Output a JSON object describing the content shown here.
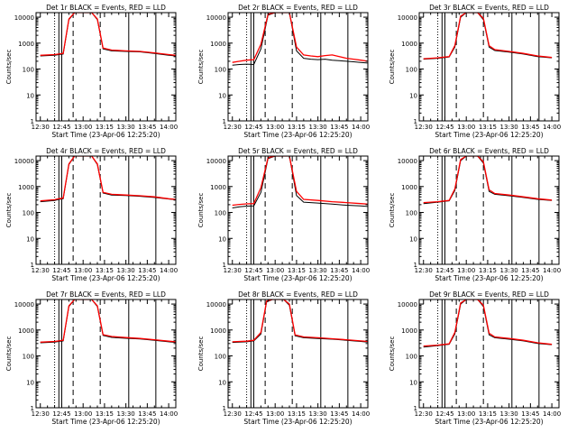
{
  "figure": {
    "xlabel": "Start Time (23-Apr-06 12:25:20)",
    "ylabel": "Counts/sec",
    "xticks": [
      "12:30",
      "12:45",
      "13:00",
      "13:15",
      "13:30",
      "13:45",
      "14:00"
    ],
    "yticks": [
      "1",
      "10",
      "100",
      "1000",
      "10000"
    ],
    "colors": {
      "events": "#000000",
      "lld": "#ff0000",
      "axes": "#000000"
    }
  },
  "chart_data": [
    {
      "type": "line",
      "title": "Det 1r BLACK = Events, RED = LLD",
      "x": [
        "12:30",
        "12:40",
        "12:43",
        "12:46",
        "12:50",
        "12:54",
        "12:58",
        "13:02",
        "13:06",
        "13:10",
        "13:14",
        "13:20",
        "13:30",
        "13:40",
        "13:50",
        "14:00",
        "14:05"
      ],
      "series": [
        {
          "name": "Events",
          "values": [
            320,
            340,
            360,
            380,
            8000,
            15000,
            15000,
            15000,
            15000,
            8000,
            600,
            500,
            480,
            460,
            400,
            340,
            320
          ]
        },
        {
          "name": "LLD",
          "values": [
            340,
            360,
            380,
            400,
            8500,
            15000,
            15000,
            15000,
            15000,
            8500,
            650,
            540,
            500,
            480,
            420,
            360,
            340
          ]
        }
      ]
    },
    {
      "type": "line",
      "title": "Det 2r BLACK = Events, RED = LLD",
      "x": [
        "12:30",
        "12:35",
        "12:40",
        "12:45",
        "12:50",
        "12:55",
        "13:00",
        "13:05",
        "13:10",
        "13:15",
        "13:20",
        "13:25",
        "13:30",
        "13:35",
        "13:40",
        "13:45",
        "13:50",
        "13:55",
        "14:00",
        "14:05"
      ],
      "series": [
        {
          "name": "Events",
          "values": [
            140,
            150,
            155,
            150,
            600,
            12000,
            15000,
            15000,
            15000,
            500,
            260,
            240,
            230,
            240,
            220,
            210,
            200,
            190,
            180,
            170
          ]
        },
        {
          "name": "LLD",
          "values": [
            180,
            200,
            220,
            230,
            900,
            13000,
            15000,
            15000,
            15000,
            700,
            350,
            320,
            300,
            330,
            350,
            300,
            260,
            240,
            220,
            200
          ]
        }
      ]
    },
    {
      "type": "line",
      "title": "Det 3r BLACK = Events, RED = LLD",
      "x": [
        "12:30",
        "12:40",
        "12:45",
        "12:48",
        "12:52",
        "12:56",
        "13:00",
        "13:04",
        "13:08",
        "13:12",
        "13:16",
        "13:20",
        "13:30",
        "13:40",
        "13:50",
        "14:00"
      ],
      "series": [
        {
          "name": "Events",
          "values": [
            240,
            260,
            280,
            290,
            700,
            10000,
            15000,
            15000,
            15000,
            8000,
            700,
            520,
            450,
            380,
            300,
            270
          ]
        },
        {
          "name": "LLD",
          "values": [
            250,
            270,
            290,
            300,
            800,
            11000,
            15000,
            15000,
            15000,
            9000,
            800,
            560,
            480,
            400,
            320,
            280
          ]
        }
      ]
    },
    {
      "type": "line",
      "title": "Det 4r BLACK = Events, RED = LLD",
      "x": [
        "12:30",
        "12:40",
        "12:43",
        "12:46",
        "12:50",
        "12:54",
        "12:58",
        "13:02",
        "13:06",
        "13:10",
        "13:14",
        "13:20",
        "13:30",
        "13:40",
        "13:50",
        "14:00",
        "14:05"
      ],
      "series": [
        {
          "name": "Events",
          "values": [
            260,
            290,
            320,
            340,
            7000,
            15000,
            15000,
            15000,
            15000,
            7000,
            560,
            470,
            450,
            420,
            380,
            330,
            310
          ]
        },
        {
          "name": "LLD",
          "values": [
            280,
            310,
            340,
            360,
            7500,
            15000,
            15000,
            15000,
            15000,
            7500,
            600,
            500,
            470,
            440,
            400,
            340,
            320
          ]
        }
      ]
    },
    {
      "type": "line",
      "title": "Det 5r BLACK = Events, RED = LLD",
      "x": [
        "12:30",
        "12:35",
        "12:40",
        "12:45",
        "12:50",
        "12:55",
        "13:00",
        "13:05",
        "13:10",
        "13:15",
        "13:20",
        "13:30",
        "13:40",
        "13:50",
        "14:00",
        "14:05"
      ],
      "series": [
        {
          "name": "Events",
          "values": [
            150,
            165,
            175,
            180,
            600,
            12000,
            15000,
            15000,
            15000,
            450,
            250,
            230,
            210,
            190,
            180,
            170
          ]
        },
        {
          "name": "LLD",
          "values": [
            190,
            205,
            215,
            220,
            900,
            13000,
            15000,
            15000,
            15000,
            650,
            320,
            290,
            260,
            240,
            220,
            210
          ]
        }
      ]
    },
    {
      "type": "line",
      "title": "Det 6r BLACK = Events, RED = LLD",
      "x": [
        "12:30",
        "12:40",
        "12:45",
        "12:48",
        "12:52",
        "12:56",
        "13:00",
        "13:04",
        "13:08",
        "13:12",
        "13:16",
        "13:20",
        "13:30",
        "13:40",
        "13:50",
        "14:00"
      ],
      "series": [
        {
          "name": "Events",
          "values": [
            220,
            250,
            270,
            280,
            700,
            10000,
            15000,
            15000,
            15000,
            8000,
            650,
            500,
            440,
            380,
            320,
            290
          ]
        },
        {
          "name": "LLD",
          "values": [
            240,
            260,
            280,
            290,
            800,
            11000,
            15000,
            15000,
            15000,
            9000,
            750,
            540,
            470,
            400,
            340,
            300
          ]
        }
      ]
    },
    {
      "type": "line",
      "title": "Det 7r BLACK = Events, RED = LLD",
      "x": [
        "12:30",
        "12:40",
        "12:43",
        "12:46",
        "12:50",
        "12:54",
        "12:58",
        "13:02",
        "13:06",
        "13:10",
        "13:14",
        "13:20",
        "13:30",
        "13:40",
        "13:50",
        "14:00",
        "14:05"
      ],
      "series": [
        {
          "name": "Events",
          "values": [
            320,
            340,
            360,
            380,
            8000,
            15000,
            15000,
            15000,
            15000,
            8000,
            620,
            520,
            480,
            450,
            400,
            350,
            330
          ]
        },
        {
          "name": "LLD",
          "values": [
            340,
            360,
            380,
            400,
            8500,
            15000,
            15000,
            15000,
            15000,
            8500,
            660,
            560,
            510,
            470,
            420,
            370,
            350
          ]
        }
      ]
    },
    {
      "type": "line",
      "title": "Det 8r BLACK = Events, RED = LLD",
      "x": [
        "12:30",
        "12:40",
        "12:45",
        "12:50",
        "12:54",
        "12:58",
        "13:02",
        "13:06",
        "13:10",
        "13:14",
        "13:20",
        "13:30",
        "13:40",
        "13:50",
        "14:00",
        "14:05"
      ],
      "series": [
        {
          "name": "Events",
          "values": [
            330,
            350,
            380,
            700,
            12000,
            15000,
            15000,
            15000,
            9000,
            600,
            500,
            470,
            440,
            400,
            360,
            340
          ]
        },
        {
          "name": "LLD",
          "values": [
            350,
            370,
            400,
            800,
            13000,
            15000,
            15000,
            15000,
            10000,
            650,
            540,
            500,
            460,
            420,
            380,
            360
          ]
        }
      ]
    },
    {
      "type": "line",
      "title": "Det 9r BLACK = Events, RED = LLD",
      "x": [
        "12:30",
        "12:40",
        "12:45",
        "12:48",
        "12:52",
        "12:56",
        "13:00",
        "13:04",
        "13:08",
        "13:12",
        "13:16",
        "13:20",
        "13:30",
        "13:40",
        "13:50",
        "14:00"
      ],
      "series": [
        {
          "name": "Events",
          "values": [
            220,
            250,
            270,
            280,
            700,
            10000,
            15000,
            15000,
            15000,
            8000,
            650,
            500,
            440,
            380,
            300,
            270
          ]
        },
        {
          "name": "LLD",
          "values": [
            240,
            260,
            280,
            290,
            800,
            11000,
            15000,
            15000,
            15000,
            9000,
            750,
            540,
            470,
            400,
            320,
            280
          ]
        }
      ]
    }
  ]
}
